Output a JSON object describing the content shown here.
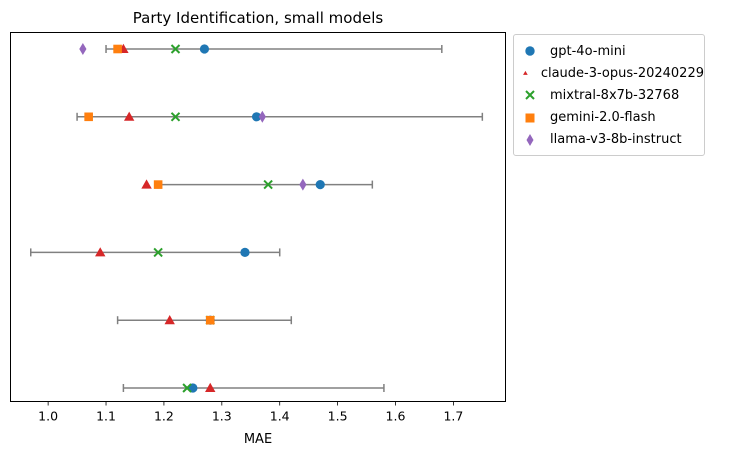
{
  "chart_data": {
    "type": "scatter",
    "title": "Party Identification, small models",
    "xlabel": "MAE",
    "ylabel": "",
    "xlim": [
      0.935,
      1.79
    ],
    "xticks": [
      "1.0",
      "1.1",
      "1.2",
      "1.3",
      "1.4",
      "1.5",
      "1.6",
      "1.7"
    ],
    "xtick_values": [
      1.0,
      1.1,
      1.2,
      1.3,
      1.4,
      1.5,
      1.6,
      1.7
    ],
    "n_rows": 6,
    "ranges": [
      {
        "row": 0,
        "min": 1.1,
        "max": 1.68
      },
      {
        "row": 1,
        "min": 1.05,
        "max": 1.75
      },
      {
        "row": 2,
        "min": 1.19,
        "max": 1.56
      },
      {
        "row": 3,
        "min": 0.97,
        "max": 1.4
      },
      {
        "row": 4,
        "min": 1.12,
        "max": 1.42
      },
      {
        "row": 5,
        "min": 1.13,
        "max": 1.58
      }
    ],
    "series": [
      {
        "name": "gpt-4o-mini",
        "marker": "circle",
        "color": "#1f77b4",
        "values": [
          1.27,
          1.36,
          1.47,
          1.34,
          1.28,
          1.25
        ]
      },
      {
        "name": "claude-3-opus-20240229",
        "marker": "triangle",
        "color": "#d62728",
        "values": [
          1.13,
          1.14,
          1.17,
          1.09,
          1.21,
          1.28
        ]
      },
      {
        "name": "mixtral-8x7b-32768",
        "marker": "x",
        "color": "#2ca02c",
        "values": [
          1.22,
          1.22,
          1.38,
          1.19,
          1.28,
          1.24
        ]
      },
      {
        "name": "gemini-2.0-flash",
        "marker": "square",
        "color": "#ff7f0e",
        "values": [
          1.12,
          1.07,
          1.19,
          null,
          1.28,
          null
        ]
      },
      {
        "name": "llama-v3-8b-instruct",
        "marker": "diamond",
        "color": "#9467bd",
        "values": [
          1.06,
          1.37,
          1.44,
          null,
          null,
          null
        ]
      }
    ],
    "range_color": "#808080",
    "legend_position": "outside-top-right"
  }
}
